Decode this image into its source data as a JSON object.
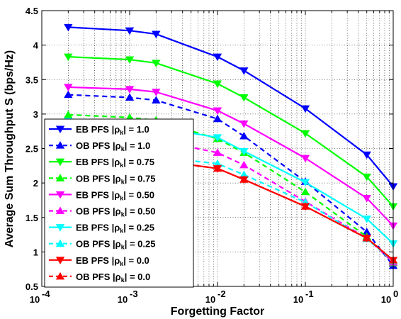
{
  "chart_data": {
    "type": "line",
    "xlabel": "Forgetting Factor",
    "ylabel": "Average Sum Throughput S (bps/Hz)",
    "xscale": "log",
    "xlim": [
      0.0001,
      1
    ],
    "ylim": [
      0.5,
      4.5
    ],
    "grid": true,
    "legend_position": "left",
    "x": [
      0.0002,
      0.001,
      0.002,
      0.01,
      0.02,
      0.1,
      0.5,
      1
    ],
    "x_ticks": [
      {
        "base": "10",
        "exp": "-4",
        "value": 0.0001
      },
      {
        "base": "10",
        "exp": "-3",
        "value": 0.001
      },
      {
        "base": "10",
        "exp": "-2",
        "value": 0.01
      },
      {
        "base": "10",
        "exp": "-1",
        "value": 0.1
      },
      {
        "base": "10",
        "exp": "0",
        "value": 1
      }
    ],
    "y_ticks": [
      "0.5",
      "1",
      "1.5",
      "2",
      "2.5",
      "3",
      "3.5",
      "4",
      "4.5"
    ],
    "series": [
      {
        "name": "EB PFS |ρk| = 1.0",
        "legend_prefix": "EB PFS |ρ",
        "legend_sub": "k",
        "legend_suffix": "| = 1.0",
        "color": "#0000ff",
        "dash": false,
        "marker": "down",
        "values": [
          4.26,
          4.21,
          4.16,
          3.83,
          3.63,
          3.08,
          2.41,
          1.95
        ]
      },
      {
        "name": "OB PFS |ρk| = 1.0",
        "legend_prefix": "OB PFS |ρ",
        "legend_sub": "k",
        "legend_suffix": "| = 1.0",
        "color": "#0000ff",
        "dash": true,
        "marker": "up",
        "values": [
          3.28,
          3.24,
          3.2,
          2.93,
          2.68,
          2.02,
          1.29,
          0.8
        ]
      },
      {
        "name": "EB PFS |ρk| = 0.75",
        "legend_prefix": "EB PFS |ρ",
        "legend_sub": "k",
        "legend_suffix": "| = 0.75",
        "color": "#00ff00",
        "dash": false,
        "marker": "down",
        "values": [
          3.83,
          3.79,
          3.74,
          3.44,
          3.24,
          2.72,
          2.09,
          1.66
        ]
      },
      {
        "name": "OB PFS |ρk| = 0.75",
        "legend_prefix": "OB PFS |ρ",
        "legend_sub": "k",
        "legend_suffix": "| = 0.75",
        "color": "#00ff00",
        "dash": true,
        "marker": "up",
        "values": [
          2.99,
          2.95,
          2.91,
          2.64,
          2.44,
          1.87,
          1.22,
          0.84
        ]
      },
      {
        "name": "EB PFS |ρk| = 0.50",
        "legend_prefix": "EB PFS |ρ",
        "legend_sub": "k",
        "legend_suffix": "| = 0.50",
        "color": "#ff00ff",
        "dash": false,
        "marker": "down",
        "values": [
          3.39,
          3.36,
          3.32,
          3.05,
          2.86,
          2.36,
          1.78,
          1.38
        ]
      },
      {
        "name": "OB PFS |ρk| = 0.50",
        "legend_prefix": "OB PFS |ρ",
        "legend_sub": "k",
        "legend_suffix": "| = 0.50",
        "color": "#ff00ff",
        "dash": true,
        "marker": "up",
        "values": [
          2.72,
          2.68,
          2.62,
          2.44,
          2.26,
          1.73,
          1.2,
          0.85
        ]
      },
      {
        "name": "EB PFS |ρk| = 0.25",
        "legend_prefix": "EB PFS |ρ",
        "legend_sub": "k",
        "legend_suffix": "| = 0.25",
        "color": "#00ffff",
        "dash": false,
        "marker": "down",
        "values": [
          2.9,
          2.86,
          2.81,
          2.66,
          2.46,
          2.01,
          1.48,
          1.12
        ]
      },
      {
        "name": "OB PFS |ρk| = 0.25",
        "legend_prefix": "OB PFS |ρ",
        "legend_sub": "k",
        "legend_suffix": "| = 0.25",
        "color": "#00ffff",
        "dash": true,
        "marker": "up",
        "values": [
          2.46,
          2.42,
          2.38,
          2.28,
          2.12,
          1.72,
          1.19,
          0.87
        ]
      },
      {
        "name": "EB PFS |ρk| = 0.0",
        "legend_prefix": "EB PFS |ρ",
        "legend_sub": "k",
        "legend_suffix": "| = 0.0",
        "color": "#ff0000",
        "dash": false,
        "marker": "down",
        "values": [
          2.38,
          2.36,
          2.33,
          2.21,
          2.05,
          1.66,
          1.2,
          0.88
        ]
      },
      {
        "name": "OB PFS |ρk| = 0.0",
        "legend_prefix": "OB PFS |ρ",
        "legend_sub": "k",
        "legend_suffix": "| = 0.0",
        "color": "#ff0000",
        "dash": true,
        "marker": "up",
        "values": [
          2.38,
          2.36,
          2.33,
          2.21,
          2.05,
          1.66,
          1.2,
          0.88
        ]
      }
    ]
  }
}
